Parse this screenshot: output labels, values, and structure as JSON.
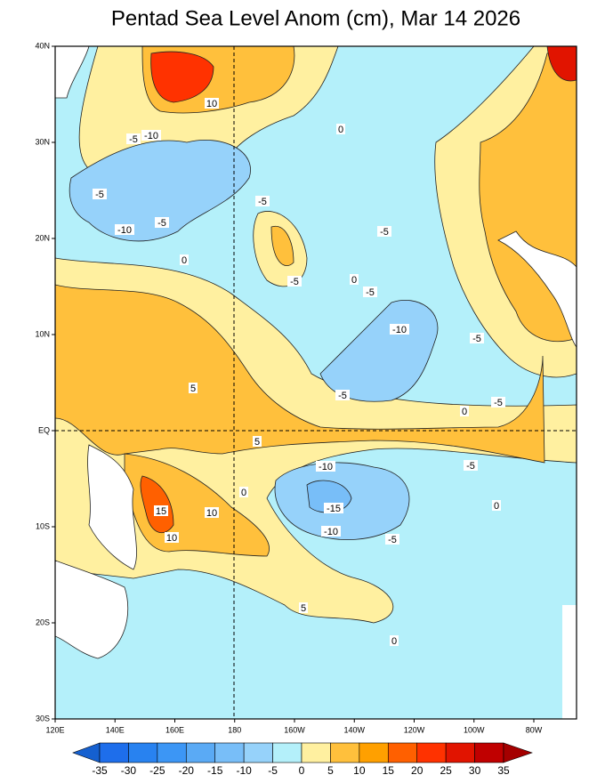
{
  "title": "Pentad Sea Level Anom (cm), Mar 14 2026",
  "latitude_labels": [
    "40N",
    "30N",
    "20N",
    "10N",
    "EQ",
    "10S",
    "20S",
    "30S"
  ],
  "longitude_labels": [
    "120E",
    "140E",
    "160E",
    "180",
    "160W",
    "140W",
    "120W",
    "100W",
    "80W"
  ],
  "contour_labels": [
    "10",
    "-5",
    "-10",
    "0",
    "-5",
    "-10",
    "-5",
    "0",
    "-5",
    "-5",
    "-5",
    "0",
    "-5",
    "-10",
    "-5",
    "5",
    "-5",
    "0",
    "-5",
    "5",
    "-5",
    "-10",
    "15",
    "10",
    "-15",
    "-10",
    "-5",
    "10",
    "0",
    "0",
    "5",
    "0"
  ],
  "colorbar": {
    "levels": [
      -35,
      -30,
      -25,
      -20,
      -15,
      -10,
      -5,
      0,
      5,
      10,
      15,
      20,
      25,
      30,
      35
    ],
    "colors": [
      "#1560d0",
      "#1e6eeb",
      "#2882f0",
      "#3c96f5",
      "#5aaaf5",
      "#78bef8",
      "#96d2fa",
      "#b4f0fa",
      "#fff0a0",
      "#ffc03c",
      "#ffa000",
      "#ff6000",
      "#ff3200",
      "#e11400",
      "#c00000",
      "#a50000"
    ]
  }
}
